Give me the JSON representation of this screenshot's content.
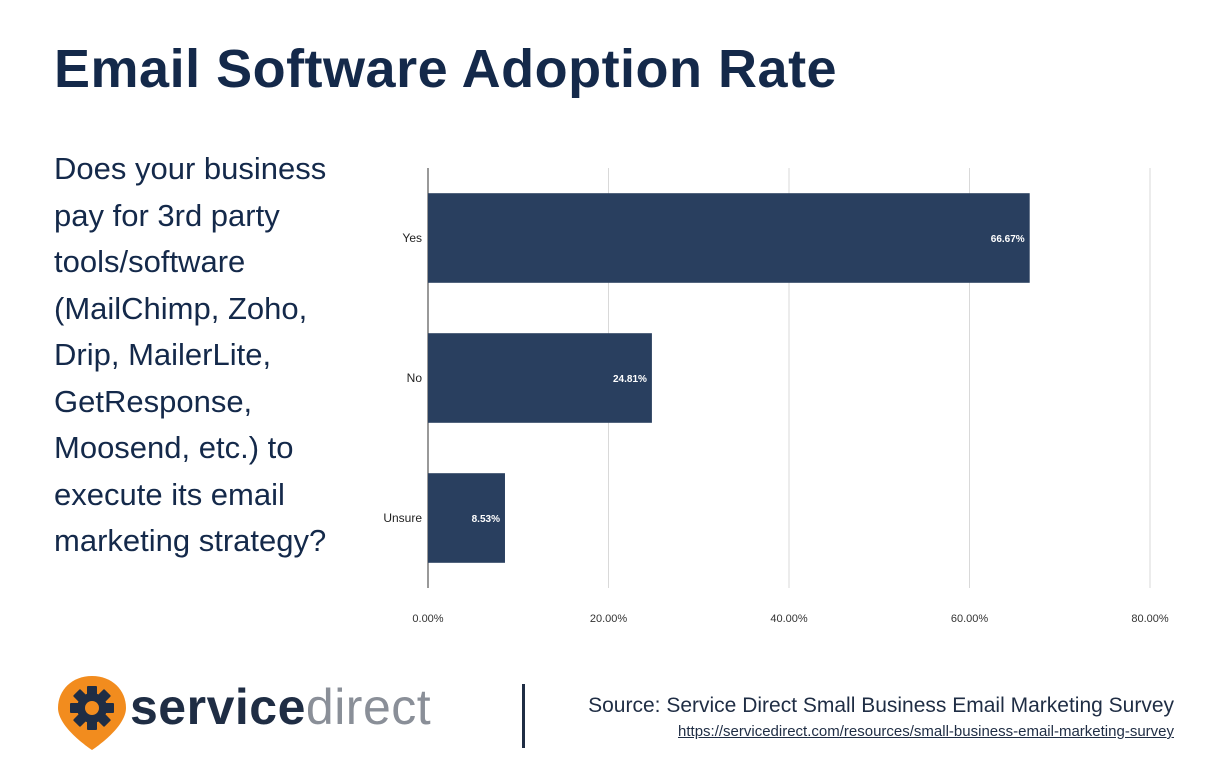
{
  "header": {
    "title": "Email Software Adoption Rate"
  },
  "question": "Does your business pay for 3rd party tools/software (MailChimp, Zoho, Drip, MailerLite, GetResponse, Moosend, etc.) to execute its email marketing strategy?",
  "chart_data": {
    "type": "bar",
    "orientation": "horizontal",
    "categories": [
      "Yes",
      "No",
      "Unsure"
    ],
    "values": [
      66.67,
      24.81,
      8.53
    ],
    "data_labels": [
      "66.67%",
      "24.81%",
      "8.53%"
    ],
    "x_ticks": [
      "0.00%",
      "20.00%",
      "40.00%",
      "60.00%",
      "80.00%"
    ],
    "xlim": [
      0,
      80
    ],
    "grid": true,
    "bar_color": "#293f5f",
    "title": "",
    "xlabel": "",
    "ylabel": ""
  },
  "footer": {
    "brand_bold": "service",
    "brand_light": "direct",
    "source": "Source: Service Direct Small Business Email Marketing Survey",
    "source_url": "https://servicedirect.com/resources/small-business-email-marketing-survey"
  },
  "colors": {
    "title": "#14294a",
    "logo_orange": "#f28c1e",
    "logo_dark": "#1f2d44",
    "gridline": "#d9d9d9"
  }
}
